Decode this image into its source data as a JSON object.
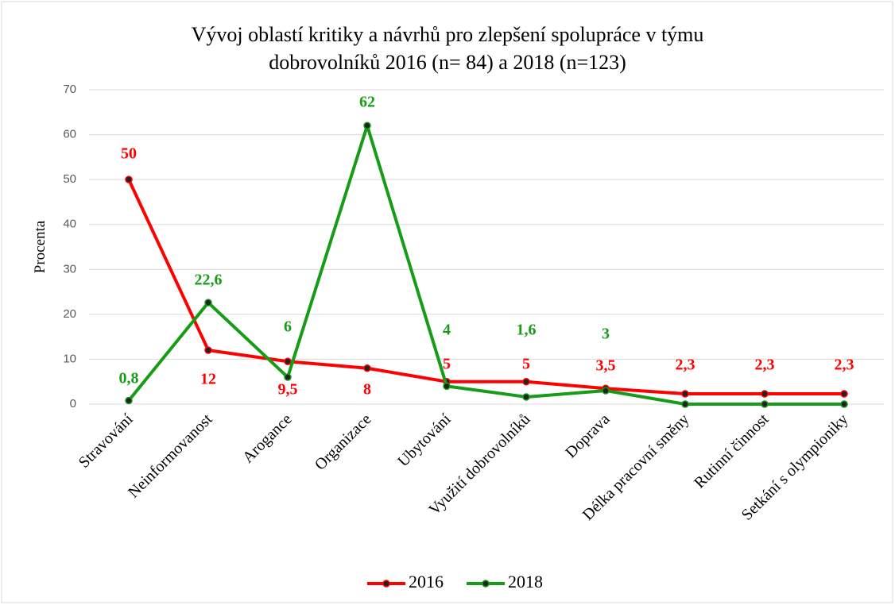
{
  "chart_data": {
    "type": "line",
    "title": [
      "Vývoj oblastí kritiky a návrhů pro zlepšení spolupráce  v týmu",
      "dobrovolníků 2016 (n= 84) a 2018 (n=123)"
    ],
    "y_label": "Procenta",
    "categories": [
      "Stravování",
      "Neinformovanost",
      "Arogance",
      "Organizace",
      "Ubytování",
      "Využití dobrovolníků",
      "Doprava",
      "Délka pracovní směny",
      "Rutinní činnost",
      "Setkání s olympioniky"
    ],
    "series": [
      {
        "name": "2016",
        "color": "#ff0000",
        "values": [
          50,
          12,
          9.5,
          8,
          5,
          5,
          3.5,
          2.3,
          2.3,
          2.3
        ],
        "value_labels": [
          "50",
          "12",
          "9,5",
          "8",
          "5",
          "5",
          "3,5",
          "2,3",
          "2,3",
          "2,3"
        ]
      },
      {
        "name": "2018",
        "color": "#179c17",
        "values": [
          0.8,
          22.6,
          6,
          62,
          4,
          1.6,
          3,
          0,
          0,
          0
        ],
        "value_labels": [
          "0,8",
          "22,6",
          "6",
          "62",
          "4",
          "1,6",
          "3",
          null,
          null,
          null
        ]
      }
    ],
    "ylim": [
      0,
      70
    ],
    "yticks": [
      0,
      10,
      20,
      30,
      40,
      50,
      60,
      70
    ],
    "grid": true,
    "legend": "bottom"
  }
}
